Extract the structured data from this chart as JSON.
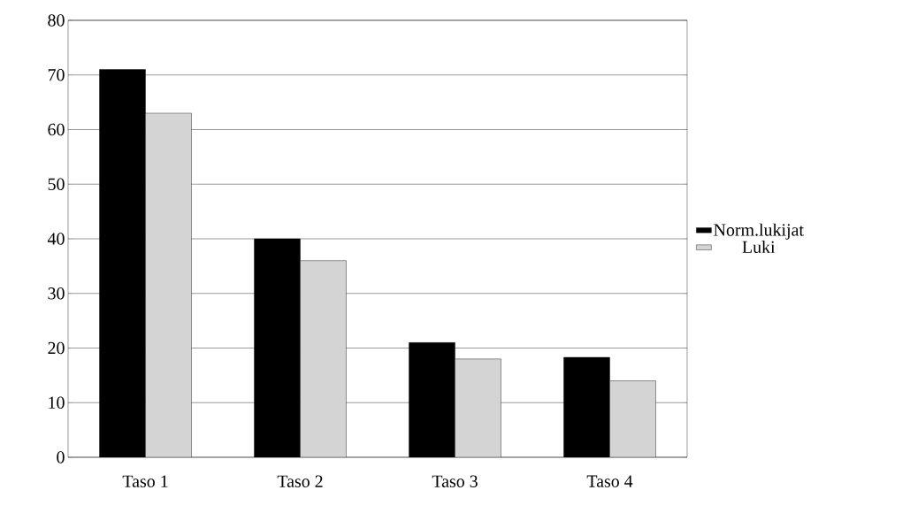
{
  "chart_data": {
    "type": "bar",
    "categories": [
      "Taso 1",
      "Taso 2",
      "Taso 3",
      "Taso 4"
    ],
    "series": [
      {
        "name": "Norm.lukijat",
        "color": "#000000",
        "values": [
          71,
          40,
          21,
          18.3
        ]
      },
      {
        "name": "Luki",
        "color": "#d4d4d4",
        "values": [
          63,
          36,
          18,
          14
        ]
      }
    ],
    "ylim": [
      0,
      80
    ],
    "yticks": [
      0,
      10,
      20,
      30,
      40,
      50,
      60,
      70,
      80
    ],
    "grid": "y",
    "legend": "right"
  }
}
